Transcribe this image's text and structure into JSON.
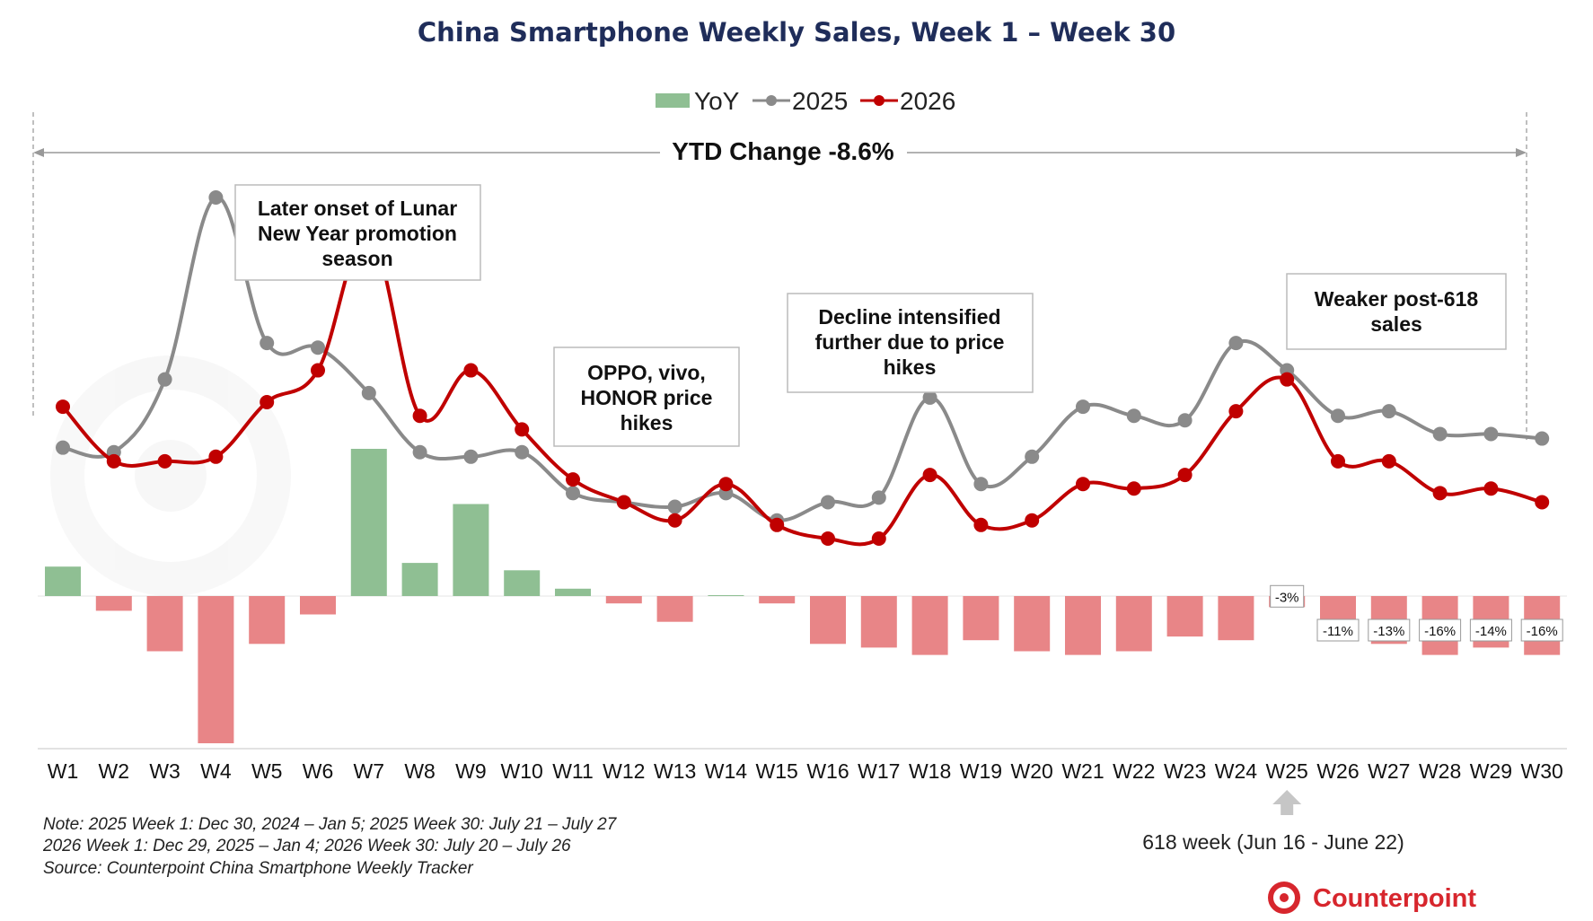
{
  "colors": {
    "yoy_pos": "#8fbf93",
    "yoy_neg": "#e88587",
    "line_2025": "#8a8a8a",
    "line_2026": "#c00000",
    "title": "#1f2d5a",
    "brand": "#d7262d"
  },
  "chart_data": {
    "type": "bar",
    "title": "China Smartphone Weekly Sales, Week 1 – Week 30",
    "categories": [
      "W1",
      "W2",
      "W3",
      "W4",
      "W5",
      "W6",
      "W7",
      "W8",
      "W9",
      "W10",
      "W11",
      "W12",
      "W13",
      "W14",
      "W15",
      "W16",
      "W17",
      "W18",
      "W19",
      "W20",
      "W21",
      "W22",
      "W23",
      "W24",
      "W25",
      "W26",
      "W27",
      "W28",
      "W29",
      "W30"
    ],
    "legend": [
      "YoY",
      "2025",
      "2026"
    ],
    "legend_position": "top",
    "series": [
      {
        "name": "YoY",
        "type": "bar",
        "unit": "%",
        "values": [
          8,
          -4,
          -15,
          -40,
          -13,
          -5,
          40,
          9,
          25,
          7,
          2,
          -2,
          -7,
          0,
          -2,
          -13,
          -14,
          -16,
          -12,
          -15,
          -16,
          -15,
          -11,
          -12,
          -3,
          -11,
          -13,
          -16,
          -14,
          -16
        ]
      },
      {
        "name": "2025",
        "type": "line",
        "values": [
          45,
          44,
          60,
          100,
          68,
          67,
          57,
          44,
          43,
          44,
          35,
          33,
          32,
          35,
          29,
          33,
          34,
          56,
          37,
          43,
          54,
          52,
          51,
          68,
          62,
          52,
          53,
          48,
          48,
          47
        ]
      },
      {
        "name": "2026",
        "type": "line",
        "values": [
          54,
          42,
          42,
          43,
          55,
          62,
          92,
          52,
          62,
          49,
          38,
          33,
          29,
          37,
          28,
          25,
          25,
          39,
          28,
          29,
          37,
          36,
          39,
          53,
          60,
          42,
          42,
          35,
          36,
          33
        ]
      }
    ],
    "data_labels": [
      {
        "category": "W25",
        "text": "-3%"
      },
      {
        "category": "W26",
        "text": "-11%"
      },
      {
        "category": "W27",
        "text": "-13%"
      },
      {
        "category": "W28",
        "text": "-16%"
      },
      {
        "category": "W29",
        "text": "-14%"
      },
      {
        "category": "W30",
        "text": "-16%"
      }
    ],
    "ytd_label": "YTD Change -8.6%",
    "annotations": {
      "lunar": [
        "Later onset of Lunar",
        "New Year promotion",
        "season"
      ],
      "oppo": [
        "OPPO, vivo,",
        "HONOR price",
        "hikes"
      ],
      "decline": [
        "Decline intensified",
        "further due to price",
        "hikes"
      ],
      "weaker": [
        "Weaker post-618",
        "sales"
      ]
    },
    "week618_label": "618 week (Jun 16 - June 22)",
    "notes": [
      "Note: 2025 Week 1: Dec 30, 2024 – Jan 5; 2025 Week 30: July 21 – July 27",
      "2026 Week 1: Dec 29, 2025 – Jan 4; 2026 Week 30: July 20 – July 26",
      "Source: Counterpoint China Smartphone Weekly Tracker"
    ],
    "brand": "Counterpoint",
    "grid": false
  }
}
